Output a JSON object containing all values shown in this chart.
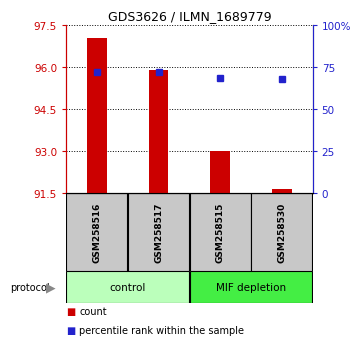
{
  "title": "GDS3626 / ILMN_1689779",
  "samples": [
    "GSM258516",
    "GSM258517",
    "GSM258515",
    "GSM258530"
  ],
  "bar_bottoms": [
    91.5,
    91.5,
    91.5,
    91.5
  ],
  "bar_tops": [
    97.05,
    95.9,
    93.0,
    91.65
  ],
  "percentile_values": [
    95.82,
    95.82,
    95.62,
    95.58
  ],
  "ylim_left": [
    91.5,
    97.5
  ],
  "yticks_left": [
    91.5,
    93.0,
    94.5,
    96.0,
    97.5
  ],
  "ylim_right": [
    0,
    100
  ],
  "yticks_right": [
    0,
    25,
    50,
    75,
    100
  ],
  "yticklabels_right": [
    "0",
    "25",
    "50",
    "75",
    "100%"
  ],
  "bar_color": "#cc0000",
  "marker_color": "#2222cc",
  "bar_width": 0.32,
  "groups": [
    {
      "label": "control",
      "samples": [
        0,
        1
      ],
      "color": "#bbffbb"
    },
    {
      "label": "MIF depletion",
      "samples": [
        2,
        3
      ],
      "color": "#44ee44"
    }
  ],
  "left_axis_color": "#cc0000",
  "right_axis_color": "#2222cc",
  "sample_box_color": "#c8c8c8",
  "legend_count_color": "#cc0000",
  "legend_percentile_color": "#2222cc",
  "title_fontsize": 9
}
